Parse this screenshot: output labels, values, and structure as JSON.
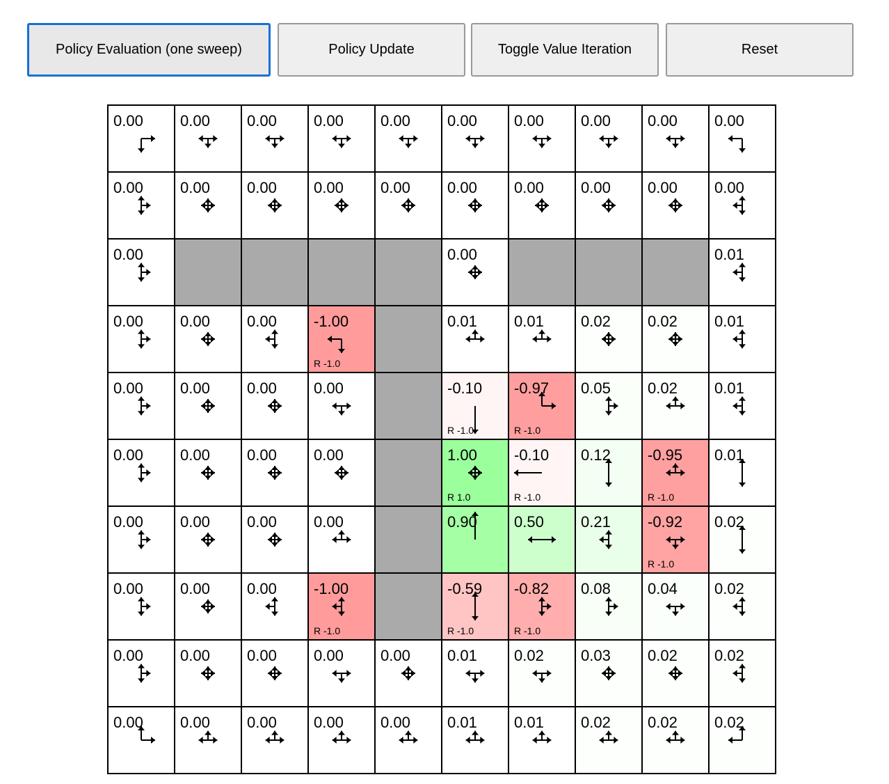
{
  "toolbar": {
    "buttons": [
      {
        "label": "Policy Evaluation (one sweep)",
        "focused": true
      },
      {
        "label": "Policy Update"
      },
      {
        "label": "Toggle Value Iteration"
      },
      {
        "label": "Reset"
      }
    ]
  },
  "colors": {
    "wall": "#aaaaaa",
    "grid_line": "#000000",
    "focus_border": "#1a6fd4"
  },
  "grid": {
    "rows": [
      [
        {
          "v": "0.00",
          "p": "RD"
        },
        {
          "v": "0.00",
          "p": "LRD"
        },
        {
          "v": "0.00",
          "p": "LRD"
        },
        {
          "v": "0.00",
          "p": "LRD"
        },
        {
          "v": "0.00",
          "p": "LRD"
        },
        {
          "v": "0.00",
          "p": "LRD"
        },
        {
          "v": "0.00",
          "p": "LRD"
        },
        {
          "v": "0.00",
          "p": "LRD"
        },
        {
          "v": "0.00",
          "p": "LRD"
        },
        {
          "v": "0.00",
          "p": "LD"
        }
      ],
      [
        {
          "v": "0.00",
          "p": "URD"
        },
        {
          "v": "0.00",
          "p": "LURD"
        },
        {
          "v": "0.00",
          "p": "LURD"
        },
        {
          "v": "0.00",
          "p": "LURD"
        },
        {
          "v": "0.00",
          "p": "LURD"
        },
        {
          "v": "0.00",
          "p": "LURD"
        },
        {
          "v": "0.00",
          "p": "LURD"
        },
        {
          "v": "0.00",
          "p": "LURD"
        },
        {
          "v": "0.00",
          "p": "LURD"
        },
        {
          "v": "0.00",
          "p": "LUD"
        }
      ],
      [
        {
          "v": "0.00",
          "p": "URD"
        },
        {
          "wall": true
        },
        {
          "wall": true
        },
        {
          "wall": true
        },
        {
          "wall": true
        },
        {
          "v": "0.00",
          "p": "LURD"
        },
        {
          "wall": true
        },
        {
          "wall": true
        },
        {
          "wall": true
        },
        {
          "v": "0.01",
          "p": "LUD"
        }
      ],
      [
        {
          "v": "0.00",
          "p": "URD"
        },
        {
          "v": "0.00",
          "p": "LURD"
        },
        {
          "v": "0.00",
          "p": "LUD"
        },
        {
          "v": "-1.00",
          "p": "LD",
          "r": "R -1.0"
        },
        {
          "wall": true
        },
        {
          "v": "0.01",
          "p": "LUR"
        },
        {
          "v": "0.01",
          "p": "LUR"
        },
        {
          "v": "0.02",
          "p": "LURD"
        },
        {
          "v": "0.02",
          "p": "LURD"
        },
        {
          "v": "0.01",
          "p": "LUD"
        }
      ],
      [
        {
          "v": "0.00",
          "p": "URD"
        },
        {
          "v": "0.00",
          "p": "LURD"
        },
        {
          "v": "0.00",
          "p": "LURD"
        },
        {
          "v": "0.00",
          "p": "LRD"
        },
        {
          "wall": true
        },
        {
          "v": "-0.10",
          "p": "D",
          "r": "R -1.0"
        },
        {
          "v": "-0.97",
          "p": "UR",
          "r": "R -1.0"
        },
        {
          "v": "0.05",
          "p": "URD"
        },
        {
          "v": "0.02",
          "p": "LUR"
        },
        {
          "v": "0.01",
          "p": "LUD"
        }
      ],
      [
        {
          "v": "0.00",
          "p": "URD"
        },
        {
          "v": "0.00",
          "p": "LURD"
        },
        {
          "v": "0.00",
          "p": "LURD"
        },
        {
          "v": "0.00",
          "p": "LURD"
        },
        {
          "wall": true
        },
        {
          "v": "1.00",
          "p": "LURD",
          "r": "R 1.0"
        },
        {
          "v": "-0.10",
          "p": "L",
          "r": "R -1.0"
        },
        {
          "v": "0.12",
          "p": "UD"
        },
        {
          "v": "-0.95",
          "p": "LUR",
          "r": "R -1.0"
        },
        {
          "v": "0.01",
          "p": "UD"
        }
      ],
      [
        {
          "v": "0.00",
          "p": "URD"
        },
        {
          "v": "0.00",
          "p": "LURD"
        },
        {
          "v": "0.00",
          "p": "LURD"
        },
        {
          "v": "0.00",
          "p": "LUR"
        },
        {
          "wall": true
        },
        {
          "v": "0.90",
          "p": "U"
        },
        {
          "v": "0.50",
          "p": "LR"
        },
        {
          "v": "0.21",
          "p": "LUD"
        },
        {
          "v": "-0.92",
          "p": "LRD",
          "r": "R -1.0"
        },
        {
          "v": "0.02",
          "p": "UD"
        }
      ],
      [
        {
          "v": "0.00",
          "p": "URD"
        },
        {
          "v": "0.00",
          "p": "LURD"
        },
        {
          "v": "0.00",
          "p": "LUD"
        },
        {
          "v": "-1.00",
          "p": "LUD",
          "r": "R -1.0"
        },
        {
          "wall": true
        },
        {
          "v": "-0.59",
          "p": "UD",
          "r": "R -1.0"
        },
        {
          "v": "-0.82",
          "p": "URD",
          "r": "R -1.0"
        },
        {
          "v": "0.08",
          "p": "URD"
        },
        {
          "v": "0.04",
          "p": "LRD"
        },
        {
          "v": "0.02",
          "p": "LUD"
        }
      ],
      [
        {
          "v": "0.00",
          "p": "URD"
        },
        {
          "v": "0.00",
          "p": "LURD"
        },
        {
          "v": "0.00",
          "p": "LURD"
        },
        {
          "v": "0.00",
          "p": "LRD"
        },
        {
          "v": "0.00",
          "p": "LURD"
        },
        {
          "v": "0.01",
          "p": "LRD"
        },
        {
          "v": "0.02",
          "p": "LRD"
        },
        {
          "v": "0.03",
          "p": "LURD"
        },
        {
          "v": "0.02",
          "p": "LURD"
        },
        {
          "v": "0.02",
          "p": "LUD"
        }
      ],
      [
        {
          "v": "0.00",
          "p": "UR"
        },
        {
          "v": "0.00",
          "p": "LUR"
        },
        {
          "v": "0.00",
          "p": "LUR"
        },
        {
          "v": "0.00",
          "p": "LUR"
        },
        {
          "v": "0.00",
          "p": "LUR"
        },
        {
          "v": "0.01",
          "p": "LUR"
        },
        {
          "v": "0.01",
          "p": "LUR"
        },
        {
          "v": "0.02",
          "p": "LUR"
        },
        {
          "v": "0.02",
          "p": "LUR"
        },
        {
          "v": "0.02",
          "p": "UL"
        }
      ]
    ]
  }
}
